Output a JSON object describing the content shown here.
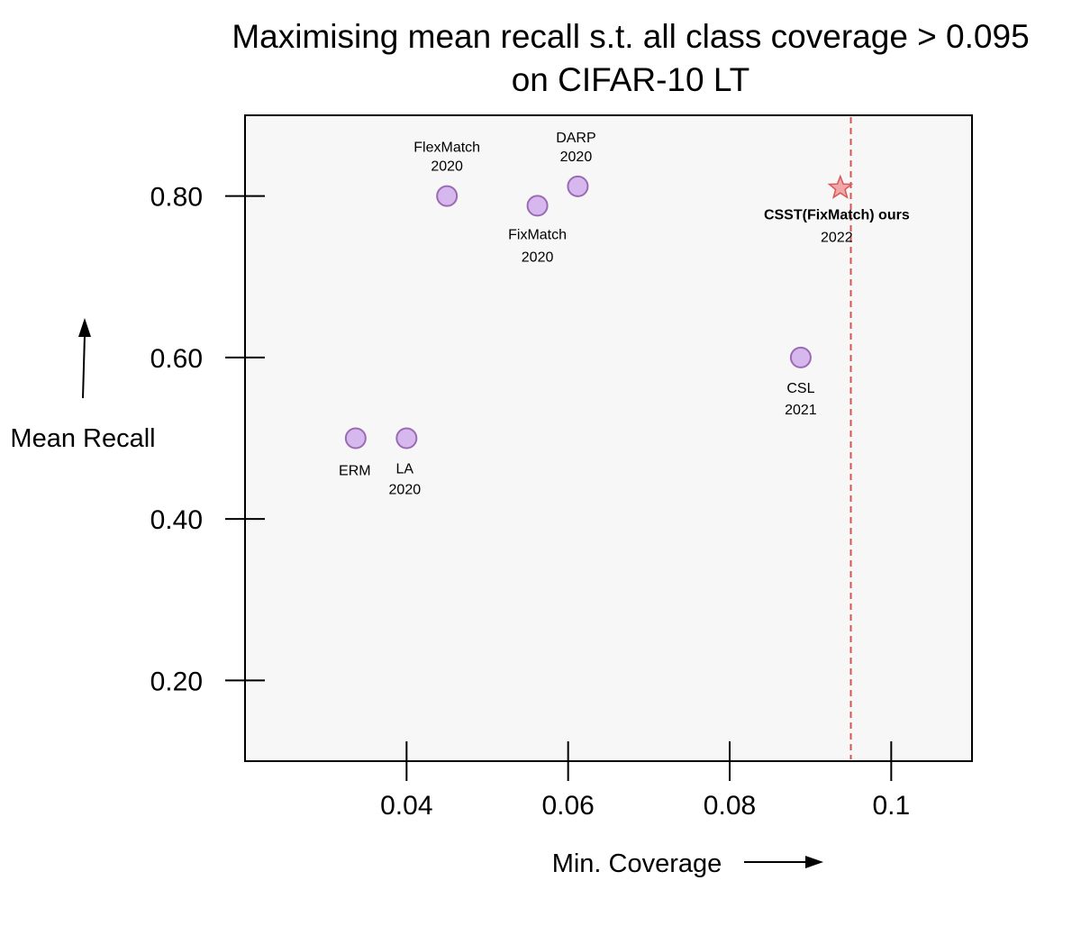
{
  "title_line1": "Maximising mean recall s.t. all class coverage > 0.095",
  "title_line2": "on CIFAR-10 LT",
  "chart_data": {
    "type": "scatter",
    "xlabel": "Min.  Coverage",
    "ylabel": "Mean Recall",
    "xlim": [
      0.02,
      0.11
    ],
    "ylim": [
      0.1,
      0.9
    ],
    "xticks": [
      {
        "value": 0.04,
        "label": "0.04"
      },
      {
        "value": 0.06,
        "label": "0.06"
      },
      {
        "value": 0.08,
        "label": "0.08"
      },
      {
        "value": 0.1,
        "label": "0.1"
      }
    ],
    "yticks": [
      {
        "value": 0.2,
        "label": "0.20"
      },
      {
        "value": 0.4,
        "label": "0.40"
      },
      {
        "value": 0.6,
        "label": "0.60"
      },
      {
        "value": 0.8,
        "label": "0.80"
      }
    ],
    "threshold": {
      "x": 0.095,
      "style": "dashed",
      "color": "#d9534f"
    },
    "points": [
      {
        "name": "ERM",
        "year": "",
        "x": 0.0337,
        "y": 0.5,
        "marker": "circle",
        "label_pos": "below"
      },
      {
        "name": "LA",
        "year": "2020",
        "x": 0.04,
        "y": 0.5,
        "marker": "circle",
        "label_pos": "below"
      },
      {
        "name": "FlexMatch",
        "year": "2020",
        "x": 0.045,
        "y": 0.8,
        "marker": "circle",
        "label_pos": "above"
      },
      {
        "name": "FixMatch",
        "year": "2020",
        "x": 0.0562,
        "y": 0.788,
        "marker": "circle",
        "label_pos": "below"
      },
      {
        "name": "DARP",
        "year": "2020",
        "x": 0.0612,
        "y": 0.812,
        "marker": "circle",
        "label_pos": "above"
      },
      {
        "name": "CSL",
        "year": "2021",
        "x": 0.0888,
        "y": 0.6,
        "marker": "circle",
        "label_pos": "below"
      },
      {
        "name": "CSST(FixMatch) ours",
        "year": "2022",
        "x": 0.0937,
        "y": 0.81,
        "marker": "star",
        "label_pos": "below",
        "bold": true
      }
    ],
    "colors": {
      "point_fill": "#d7b8ee",
      "point_stroke": "#9a6bb3",
      "star_fill": "#f1a7a7",
      "star_stroke": "#d45a5a",
      "plot_bg": "#f7f7f7"
    },
    "grid": false,
    "legend": "none"
  }
}
